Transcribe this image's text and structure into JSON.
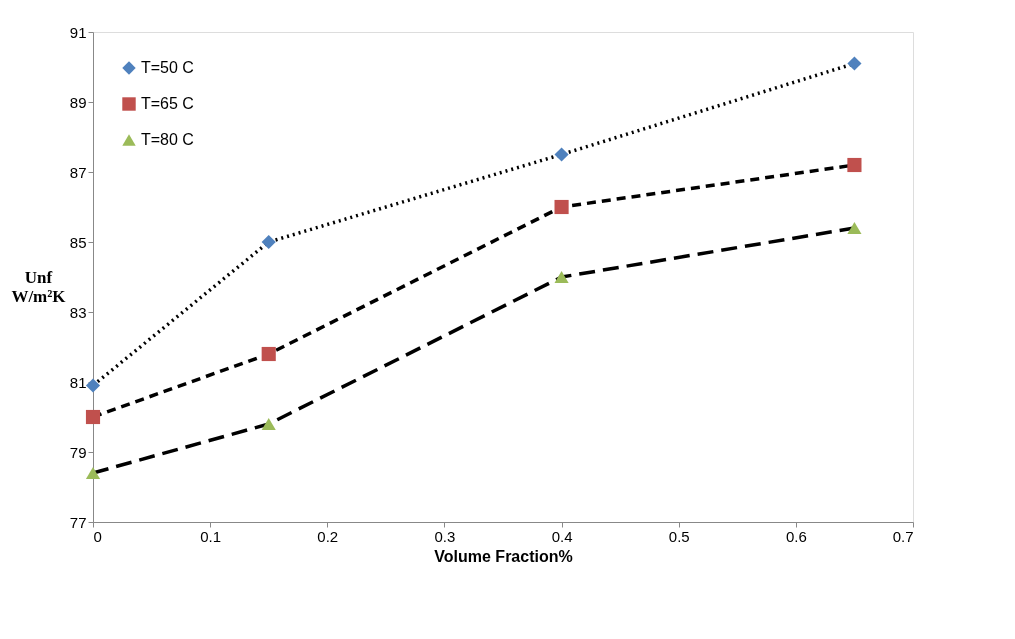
{
  "chart_data": {
    "type": "line",
    "xlabel": "Volume Fraction%",
    "ylabel": "Unf\nW/m²K",
    "x": [
      0,
      0.15,
      0.4,
      0.65
    ],
    "series": [
      {
        "name": "T=50 C",
        "color": "#4f81bd",
        "marker": "diamond",
        "line_style": "dotted",
        "values": [
          80.9,
          85.0,
          87.5,
          90.1
        ]
      },
      {
        "name": "T=65 C",
        "color": "#c0504d",
        "marker": "square",
        "line_style": "dashed",
        "values": [
          80.0,
          81.8,
          86.0,
          87.2
        ]
      },
      {
        "name": "T=80 C",
        "color": "#9bbb59",
        "marker": "triangle",
        "line_style": "longdash",
        "values": [
          78.4,
          79.8,
          84.0,
          85.4
        ]
      }
    ],
    "xlim": [
      0,
      0.7
    ],
    "xticks": [
      0,
      0.1,
      0.2,
      0.3,
      0.4,
      0.5,
      0.6,
      0.7
    ],
    "ylim": [
      77,
      91
    ],
    "yticks": [
      77,
      79,
      81,
      83,
      85,
      87,
      89,
      91
    ],
    "grid": false,
    "legend": "top left"
  }
}
